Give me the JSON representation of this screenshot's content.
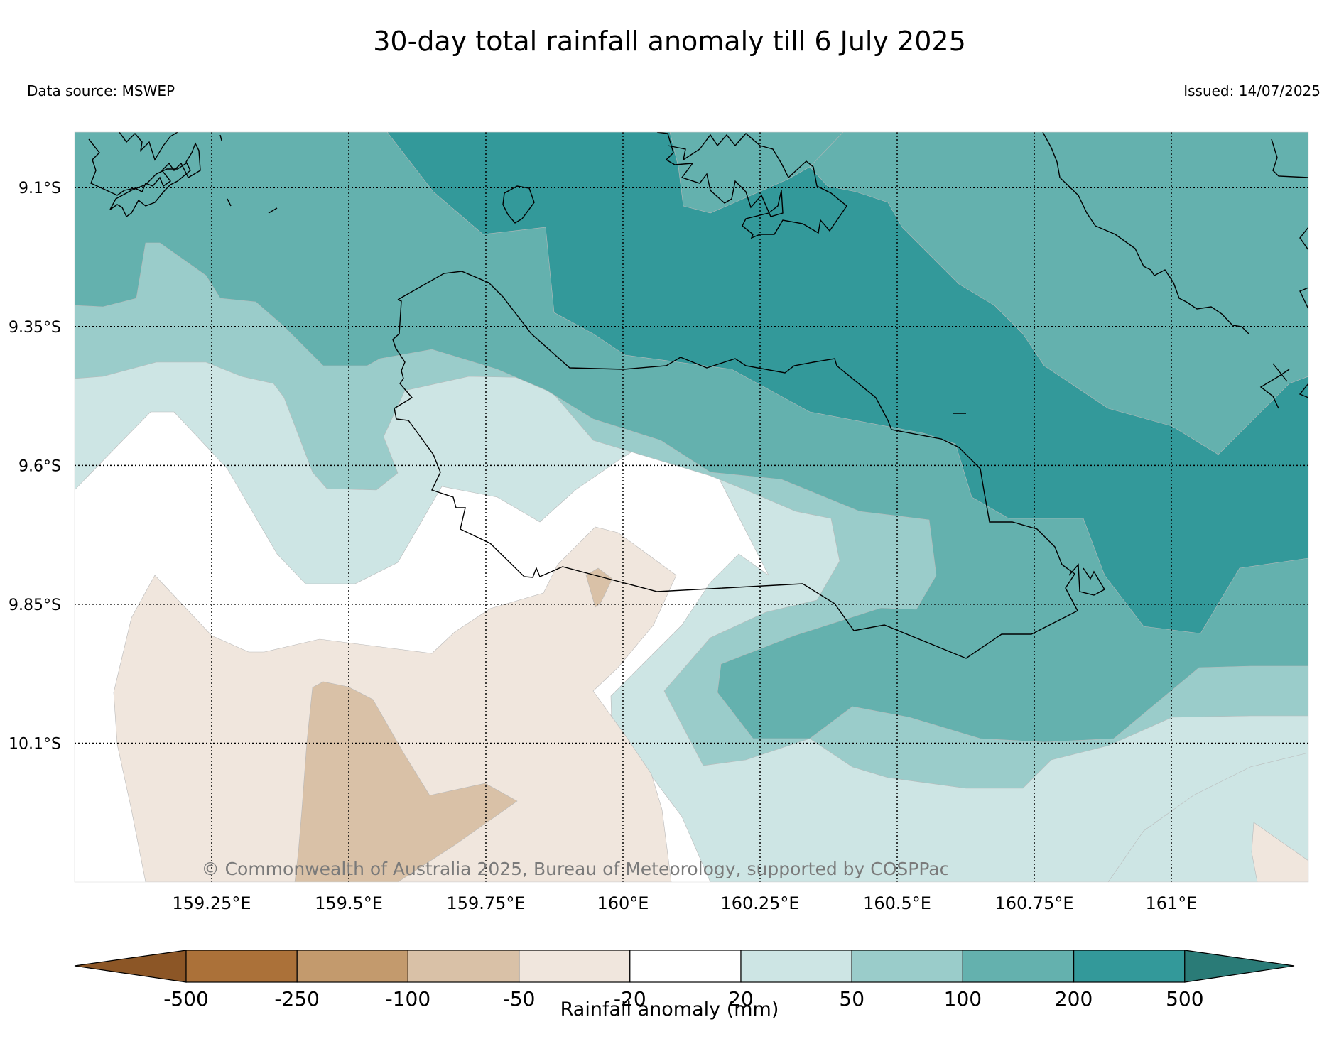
{
  "title": "30-day total rainfall anomaly till 6 July 2025",
  "data_source": "Data source: MSWEP",
  "issued": "Issued: 14/07/2025",
  "copyright": "© Commonwealth of Australia 2025, Bureau of Meteorology, supported by COSPPac",
  "map": {
    "lon_range": [
      159.0,
      161.25
    ],
    "lat_range": [
      -10.35,
      -9.0
    ],
    "lon_ticks": [
      159.25,
      159.5,
      159.75,
      160.0,
      160.25,
      160.5,
      160.75,
      161.0
    ],
    "lon_tick_labels": [
      "159.25°E",
      "159.5°E",
      "159.75°E",
      "160°E",
      "160.25°E",
      "160.5°E",
      "160.75°E",
      "161°E"
    ],
    "lat_ticks": [
      -9.1,
      -9.35,
      -9.6,
      -9.85,
      -10.1
    ],
    "lat_tick_labels": [
      "9.1°S",
      "9.35°S",
      "9.6°S",
      "9.85°S",
      "10.1°S"
    ],
    "gridlines": "dotted",
    "coastline_color": "#000000"
  },
  "colorbar": {
    "label": "Rainfall anomaly (mm)",
    "tick_labels": [
      "-500",
      "-250",
      "-100",
      "-50",
      "-20",
      "20",
      "50",
      "100",
      "200",
      "500"
    ],
    "min_extend_color": "#8c5626",
    "max_extend_color": "#2a7b77",
    "bin_colors": [
      "#ab7139",
      "#c39a6d",
      "#d9c1a7",
      "#f0e6dd",
      "#ffffff",
      "#cde5e4",
      "#9accca",
      "#64b1ae",
      "#33999a"
    ]
  }
}
